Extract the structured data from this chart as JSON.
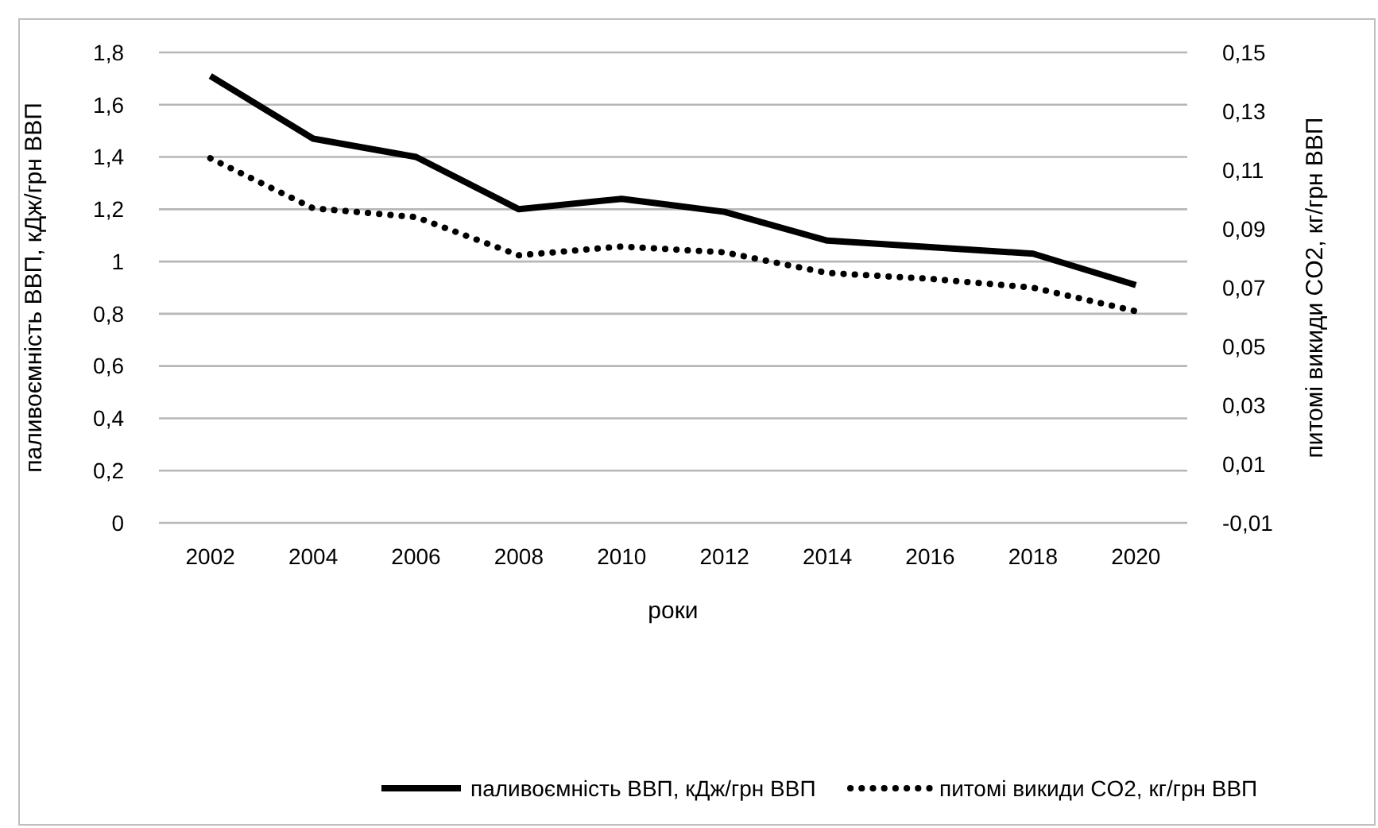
{
  "chart_data": {
    "type": "line",
    "xlabel": "роки",
    "ylabel": "паливоємність ВВП, кДж/грн ВВП",
    "y2label": "питомі викиди CO2, кг/грн ВВП",
    "categories": [
      "2002",
      "2004",
      "2006",
      "2008",
      "2010",
      "2012",
      "2014",
      "2016",
      "2018",
      "2020"
    ],
    "series": [
      {
        "name": "паливоємність ВВП, кДж/грн ВВП",
        "color": "#000000",
        "line_style": "solid",
        "values": [
          1.71,
          1.47,
          1.4,
          1.2,
          1.24,
          1.19,
          1.08,
          1.055,
          1.03,
          0.91
        ]
      },
      {
        "name": "питомі викиди CO2, кг/грн ВВП",
        "color": "#000000",
        "line_style": "dotted",
        "axis": "y2",
        "values": [
          0.114,
          0.097,
          0.094,
          0.081,
          0.084,
          0.082,
          0.075,
          0.073,
          0.07,
          0.062
        ]
      }
    ],
    "ylim": [
      0,
      1.8
    ],
    "yticks": [
      0,
      {
        "value": 0.2,
        "label": "0,2"
      },
      {
        "value": 0.4,
        "label": "0,4"
      },
      {
        "value": 0.6,
        "label": "0,6"
      },
      {
        "value": 0.8,
        "label": "0,8"
      },
      1,
      {
        "value": 1.2,
        "label": "1,2"
      },
      {
        "value": 1.4,
        "label": "1,4"
      },
      {
        "value": 1.6,
        "label": "1,6"
      },
      {
        "value": 1.8,
        "label": "1,8"
      }
    ],
    "y2lim": [
      -0.01,
      0.15
    ],
    "y2ticks": [
      {
        "value": -0.01,
        "label": "-0,01"
      },
      {
        "value": 0.01,
        "label": "0,01"
      },
      {
        "value": 0.03,
        "label": "0,03"
      },
      {
        "value": 0.05,
        "label": "0,05"
      },
      {
        "value": 0.07,
        "label": "0,07"
      },
      {
        "value": 0.09,
        "label": "0,09"
      },
      {
        "value": 0.11,
        "label": "0,11"
      },
      {
        "value": 0.13,
        "label": "0,13"
      },
      {
        "value": 0.15,
        "label": "0,15"
      }
    ],
    "grid": "y",
    "legend": "bottom"
  }
}
